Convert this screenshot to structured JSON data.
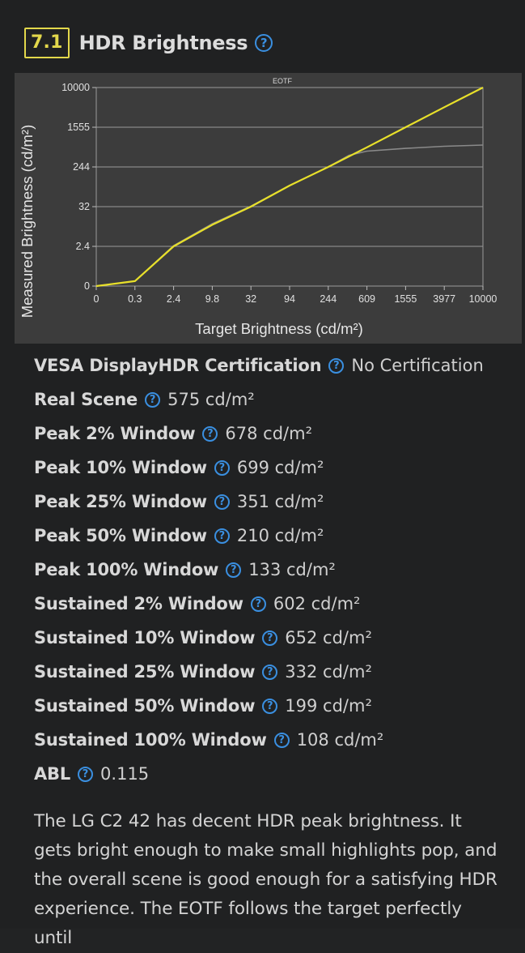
{
  "section": {
    "number": "7.1",
    "title": "HDR Brightness",
    "help_glyph": "?"
  },
  "colors": {
    "accent_yellow": "#e3d84b",
    "help_blue": "#3a8fe0",
    "background": "#202122",
    "chart_background": "#3c3c3c"
  },
  "chart_data": {
    "type": "line",
    "title": "EOTF",
    "xlabel": "Target Brightness (cd/m²)",
    "ylabel": "Measured Brightness (cd/m²)",
    "scale": "log",
    "x_ticks": [
      "0",
      "0.3",
      "2.4",
      "9.8",
      "32",
      "94",
      "244",
      "609",
      "1555",
      "3977",
      "10000"
    ],
    "y_ticks": [
      "0",
      "2.4",
      "32",
      "244",
      "1555",
      "10000"
    ],
    "xlim": [
      0,
      10000
    ],
    "ylim": [
      0,
      10000
    ],
    "grid": "horizontal",
    "series": [
      {
        "role": "target",
        "color": "#e8e02a",
        "x": [
          0,
          0.3,
          2.4,
          9.8,
          32,
          94,
          244,
          609,
          1555,
          3977,
          10000
        ],
        "y": [
          0,
          0.3,
          2.4,
          9.8,
          32,
          94,
          244,
          609,
          1555,
          3977,
          10000
        ]
      },
      {
        "role": "measured",
        "color": "#8a8a8a",
        "x": [
          0,
          0.3,
          2.4,
          9.8,
          32,
          94,
          244,
          400,
          609,
          1555,
          3977,
          10000
        ],
        "y": [
          0,
          0.3,
          2.5,
          10.5,
          33,
          95,
          244,
          420,
          510,
          580,
          640,
          678
        ]
      }
    ]
  },
  "measurements": [
    {
      "label": "VESA DisplayHDR Certification",
      "value": "No Certification"
    },
    {
      "label": "Real Scene",
      "value": "575 cd/m²"
    },
    {
      "label": "Peak 2% Window",
      "value": "678 cd/m²"
    },
    {
      "label": "Peak 10% Window",
      "value": "699 cd/m²"
    },
    {
      "label": "Peak 25% Window",
      "value": "351 cd/m²"
    },
    {
      "label": "Peak 50% Window",
      "value": "210 cd/m²"
    },
    {
      "label": "Peak 100% Window",
      "value": "133 cd/m²"
    },
    {
      "label": "Sustained 2% Window",
      "value": "602 cd/m²"
    },
    {
      "label": "Sustained 10% Window",
      "value": "652 cd/m²"
    },
    {
      "label": "Sustained 25% Window",
      "value": "332 cd/m²"
    },
    {
      "label": "Sustained 50% Window",
      "value": "199 cd/m²"
    },
    {
      "label": "Sustained 100% Window",
      "value": "108 cd/m²"
    },
    {
      "label": "ABL",
      "value": "0.115"
    }
  ],
  "description": "The LG C2 42 has decent HDR peak brightness. It gets bright enough to make small highlights pop, and the overall scene is good enough for a satisfying HDR experience. The EOTF follows the target perfectly until"
}
